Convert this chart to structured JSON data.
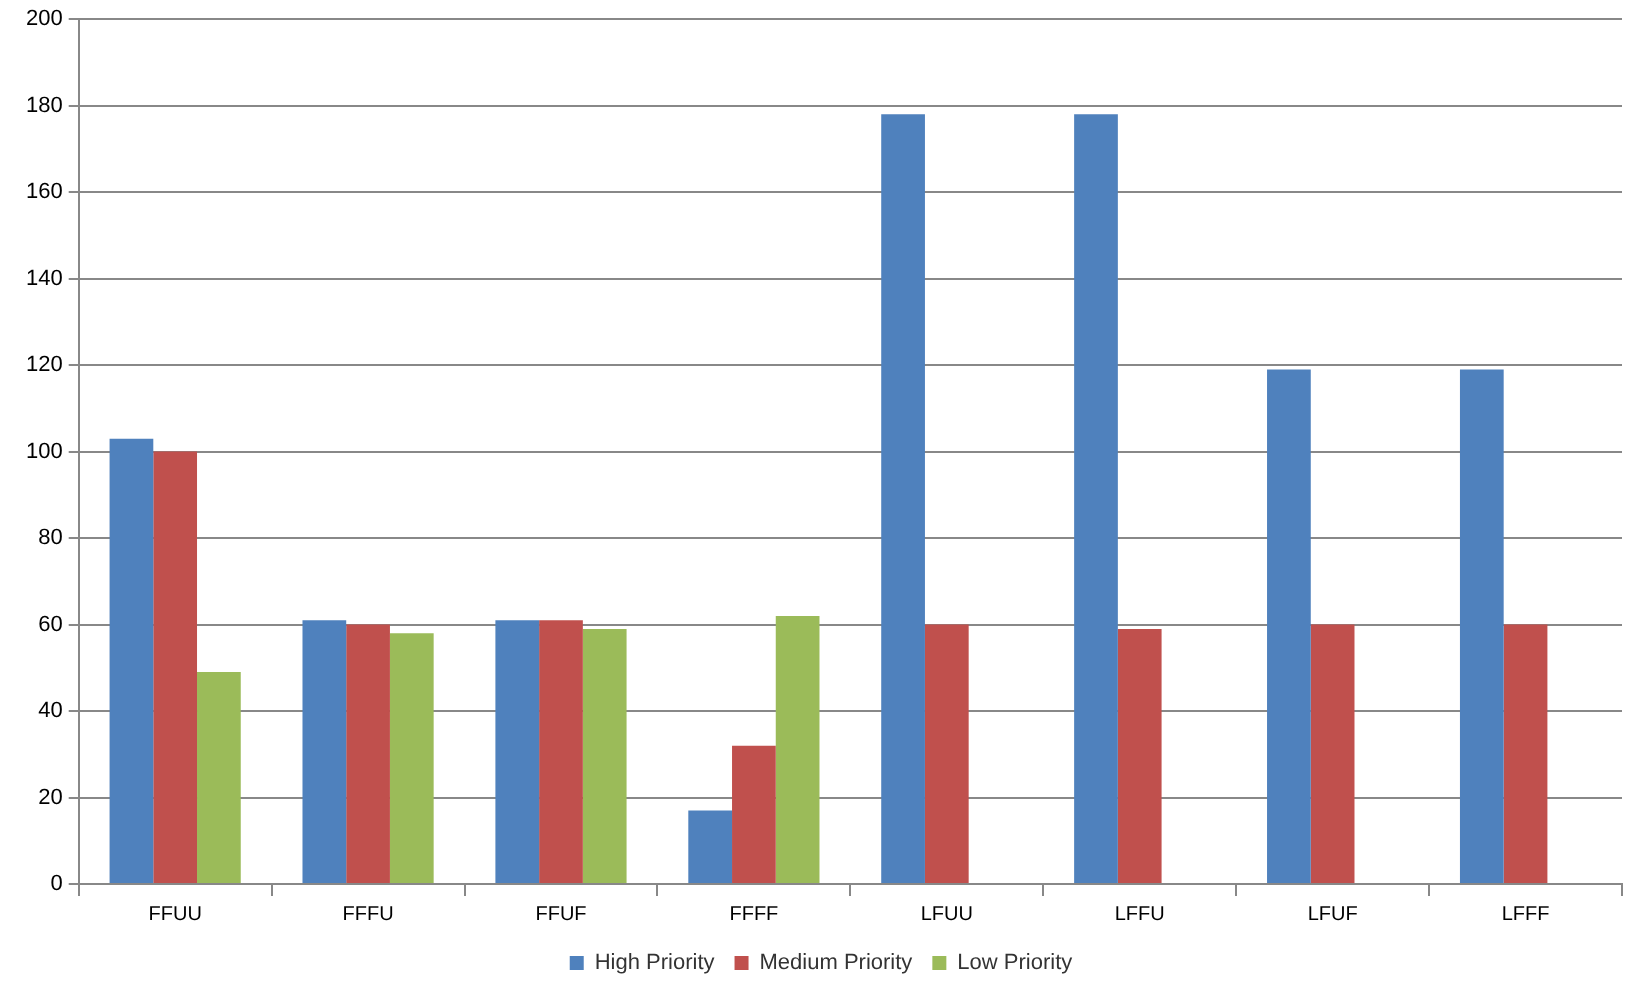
{
  "chart_data": {
    "type": "bar",
    "categories": [
      "FFUU",
      "FFFU",
      "FFUF",
      "FFFF",
      "LFUU",
      "LFFU",
      "LFUF",
      "LFFF"
    ],
    "series": [
      {
        "name": "High Priority",
        "color": "#4f81bd",
        "values": [
          103,
          61,
          61,
          17,
          178,
          178,
          119,
          119
        ]
      },
      {
        "name": "Medium Priority",
        "color": "#c0504d",
        "values": [
          100,
          60,
          61,
          32,
          60,
          59,
          60,
          60
        ]
      },
      {
        "name": "Low Priority",
        "color": "#9bbb59",
        "values": [
          49,
          58,
          59,
          62,
          null,
          null,
          null,
          null
        ]
      }
    ],
    "ylim": [
      0,
      200
    ],
    "yticks": [
      0,
      20,
      40,
      60,
      80,
      100,
      120,
      140,
      160,
      180,
      200
    ],
    "grid": "y",
    "legend": "bottom"
  }
}
